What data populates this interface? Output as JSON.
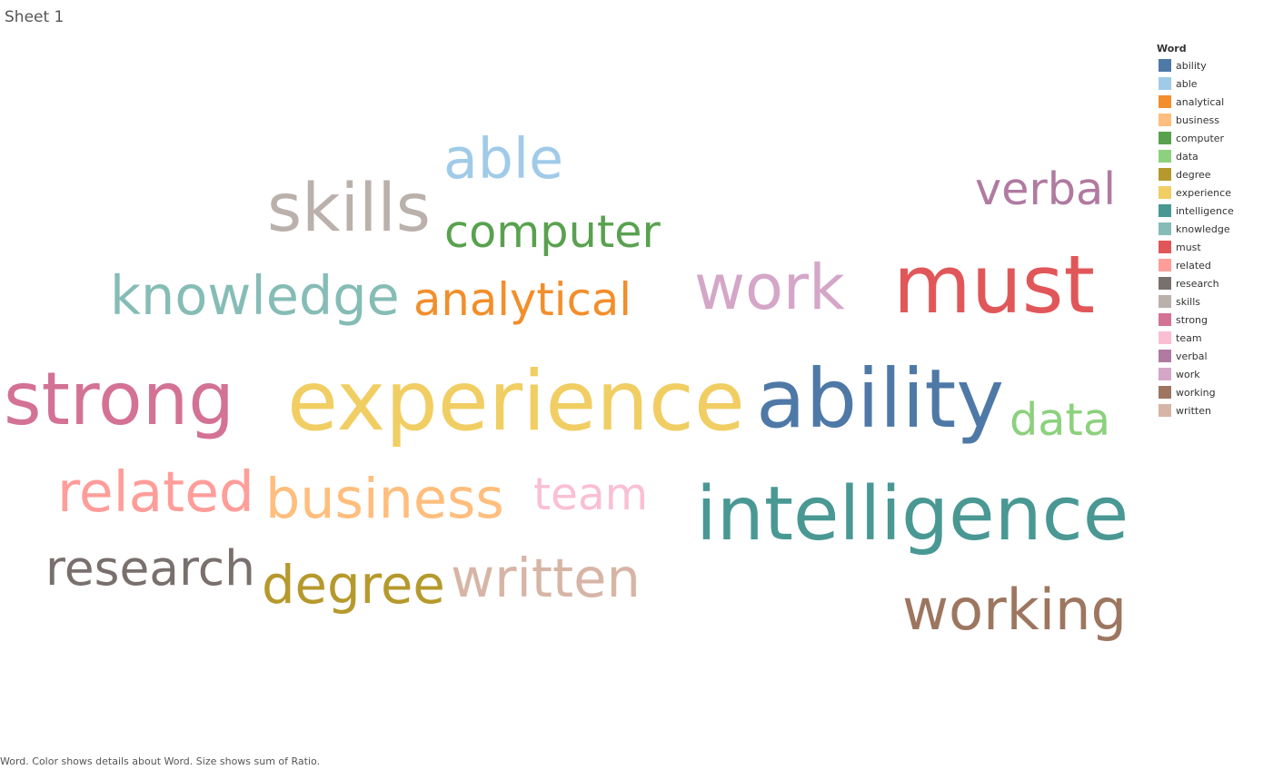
{
  "sheet": {
    "title": "Sheet 1"
  },
  "legend": {
    "title": "Word"
  },
  "caption": "Word.  Color shows details about Word.  Size shows sum of Ratio.",
  "chart_data": {
    "type": "word-cloud",
    "size_measure": "sum of Ratio",
    "color_dimension": "Word",
    "words": [
      {
        "word": "ability",
        "color": "#4e79a7",
        "relative_size": 0.95
      },
      {
        "word": "able",
        "color": "#a0cbe8",
        "relative_size": 0.66
      },
      {
        "word": "analytical",
        "color": "#f28e2b",
        "relative_size": 0.6
      },
      {
        "word": "business",
        "color": "#ffbe7d",
        "relative_size": 0.65
      },
      {
        "word": "computer",
        "color": "#59a14f",
        "relative_size": 0.58
      },
      {
        "word": "data",
        "color": "#8cd17d",
        "relative_size": 0.6
      },
      {
        "word": "degree",
        "color": "#b6992d",
        "relative_size": 0.7
      },
      {
        "word": "experience",
        "color": "#f1ce63",
        "relative_size": 1.0
      },
      {
        "word": "intelligence",
        "color": "#499894",
        "relative_size": 0.9
      },
      {
        "word": "knowledge",
        "color": "#86bcb6",
        "relative_size": 0.68
      },
      {
        "word": "must",
        "color": "#e15759",
        "relative_size": 0.98
      },
      {
        "word": "related",
        "color": "#ff9d9a",
        "relative_size": 0.68
      },
      {
        "word": "research",
        "color": "#79706e",
        "relative_size": 0.62
      },
      {
        "word": "skills",
        "color": "#bab0ac",
        "relative_size": 0.8
      },
      {
        "word": "strong",
        "color": "#d37295",
        "relative_size": 0.9
      },
      {
        "word": "team",
        "color": "#fabfd2",
        "relative_size": 0.55
      },
      {
        "word": "verbal",
        "color": "#b07aa1",
        "relative_size": 0.6
      },
      {
        "word": "work",
        "color": "#d4a6c8",
        "relative_size": 0.78
      },
      {
        "word": "working",
        "color": "#9d7660",
        "relative_size": 0.72
      },
      {
        "word": "written",
        "color": "#d7b5a6",
        "relative_size": 0.62
      }
    ]
  }
}
